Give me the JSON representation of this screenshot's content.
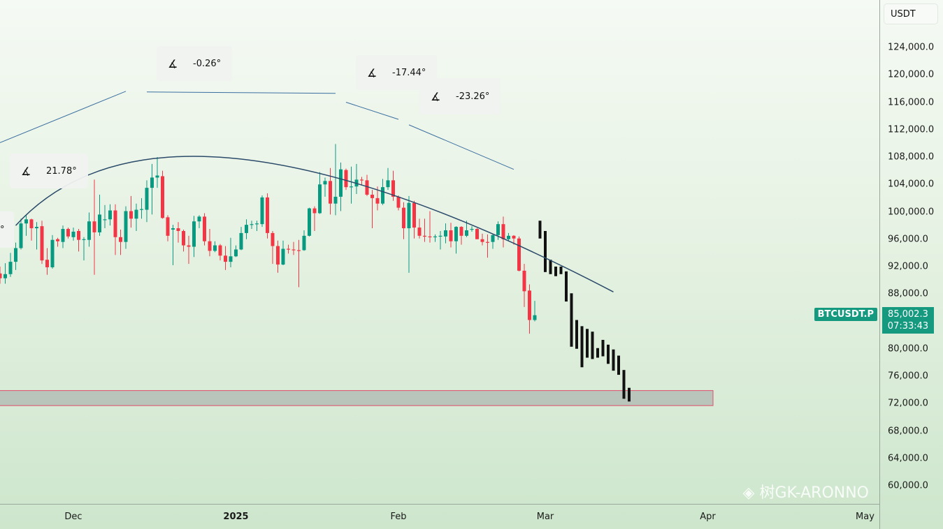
{
  "chart_data": {
    "type": "candlestick",
    "symbol": "BTCUSDT.P",
    "currency": "USDT",
    "last_price": "85,002.3",
    "countdown": "07:33:43",
    "y_ticks": [
      "124,000.0",
      "120,000.0",
      "116,000.0",
      "112,000.0",
      "108,000.0",
      "104,000.0",
      "100,000.0",
      "96,000.0",
      "92,000.0",
      "88,000.0",
      "84,000.0",
      "80,000.0",
      "76,000.0",
      "72,000.0",
      "68,000.0",
      "64,000.0",
      "60,000.0"
    ],
    "x_ticks": [
      {
        "label": "Dec",
        "date": "2024-12-01"
      },
      {
        "label": "2025",
        "date": "2025-01-01",
        "bold": true
      },
      {
        "label": "Feb",
        "date": "2025-02-01"
      },
      {
        "label": "Mar",
        "date": "2025-03-01"
      },
      {
        "label": "Apr",
        "date": "2025-04-01"
      },
      {
        "label": "May",
        "date": "2025-05-01"
      }
    ],
    "ylim": [
      58000,
      130000
    ],
    "colors": {
      "up": "#089981",
      "down": "#f23645",
      "projection": "#111111",
      "curve": "#2a4a6a",
      "zone_fill": "#b9c4bb",
      "zone_border": "#e0506a"
    },
    "candles_columns": [
      "date",
      "open",
      "high",
      "low",
      "close"
    ],
    "candles": [
      [
        "2024-11-17",
        91000,
        92000,
        89500,
        90300
      ],
      [
        "2024-11-18",
        90300,
        92500,
        89500,
        90900
      ],
      [
        "2024-11-19",
        90900,
        94000,
        90500,
        92700
      ],
      [
        "2024-11-20",
        92700,
        95500,
        91500,
        94700
      ],
      [
        "2024-11-21",
        94700,
        99000,
        94500,
        98300
      ],
      [
        "2024-11-22",
        98300,
        99500,
        96500,
        98900
      ],
      [
        "2024-11-23",
        98900,
        99000,
        95800,
        97600
      ],
      [
        "2024-11-24",
        97600,
        98500,
        94500,
        97800
      ],
      [
        "2024-11-25",
        97900,
        98700,
        92400,
        92900
      ],
      [
        "2024-11-26",
        93000,
        94700,
        90800,
        91900
      ],
      [
        "2024-11-27",
        91900,
        96600,
        91700,
        95900
      ],
      [
        "2024-11-28",
        96000,
        96200,
        94900,
        95700
      ],
      [
        "2024-11-29",
        95600,
        98000,
        94700,
        97500
      ],
      [
        "2024-11-30",
        97500,
        97700,
        96100,
        96400
      ],
      [
        "2024-12-01",
        96300,
        97700,
        95800,
        97100
      ],
      [
        "2024-12-02",
        97200,
        97500,
        94200,
        95900
      ],
      [
        "2024-12-03",
        95900,
        96300,
        92900,
        96000
      ],
      [
        "2024-12-04",
        95900,
        99900,
        94900,
        98600
      ],
      [
        "2024-12-05",
        98600,
        104700,
        90800,
        97000
      ],
      [
        "2024-12-06",
        97000,
        102500,
        96500,
        99600
      ],
      [
        "2024-12-07",
        98800,
        101000,
        97600,
        98900
      ],
      [
        "2024-12-08",
        98900,
        101100,
        98000,
        100200
      ],
      [
        "2024-12-09",
        100200,
        101100,
        93700,
        96300
      ],
      [
        "2024-12-10",
        96300,
        97400,
        93700,
        95600
      ],
      [
        "2024-12-11",
        95600,
        100800,
        94600,
        100100
      ],
      [
        "2024-12-12",
        100100,
        102300,
        97700,
        99000
      ],
      [
        "2024-12-13",
        99000,
        101200,
        97200,
        100300
      ],
      [
        "2024-12-14",
        100300,
        102000,
        99000,
        100400
      ],
      [
        "2024-12-15",
        100300,
        104600,
        98500,
        103500
      ],
      [
        "2024-12-16",
        103500,
        107000,
        99600,
        105000
      ],
      [
        "2024-12-17",
        105000,
        108000,
        103500,
        105300
      ],
      [
        "2024-12-18",
        105200,
        106000,
        99000,
        99100
      ],
      [
        "2024-12-19",
        99200,
        99500,
        95700,
        96500
      ],
      [
        "2024-12-20",
        97400,
        98100,
        92200,
        97600
      ],
      [
        "2024-12-21",
        97600,
        98500,
        95500,
        97200
      ],
      [
        "2024-12-22",
        97200,
        97400,
        94200,
        95100
      ],
      [
        "2024-12-23",
        95100,
        96500,
        92400,
        94900
      ],
      [
        "2024-12-24",
        94900,
        99400,
        93400,
        98600
      ],
      [
        "2024-12-25",
        98600,
        99500,
        97600,
        99300
      ],
      [
        "2024-12-26",
        99300,
        99800,
        95100,
        95700
      ],
      [
        "2024-12-27",
        95700,
        97500,
        93500,
        94300
      ],
      [
        "2024-12-28",
        94300,
        95700,
        94100,
        95100
      ],
      [
        "2024-12-29",
        95100,
        95300,
        92900,
        93600
      ],
      [
        "2024-12-30",
        93600,
        95000,
        91500,
        92700
      ],
      [
        "2024-12-31",
        92700,
        96200,
        91900,
        93500
      ],
      [
        "2025-01-01",
        93500,
        95100,
        93400,
        94500
      ],
      [
        "2025-01-02",
        94500,
        97800,
        94400,
        96900
      ],
      [
        "2025-01-03",
        96900,
        98900,
        96000,
        98100
      ],
      [
        "2025-01-04",
        98100,
        98700,
        97500,
        98200
      ],
      [
        "2025-01-05",
        98200,
        98700,
        97200,
        98300
      ],
      [
        "2025-01-06",
        98200,
        102400,
        97800,
        102100
      ],
      [
        "2025-01-07",
        102100,
        102700,
        96100,
        96900
      ],
      [
        "2025-01-08",
        96900,
        97200,
        92400,
        95000
      ],
      [
        "2025-01-09",
        95000,
        95800,
        91100,
        92300
      ],
      [
        "2025-01-10",
        92300,
        95800,
        92200,
        94600
      ],
      [
        "2025-01-11",
        94600,
        95200,
        93900,
        94500
      ],
      [
        "2025-01-12",
        94500,
        95600,
        93700,
        94400
      ],
      [
        "2025-01-13",
        94400,
        95900,
        89000,
        94300
      ],
      [
        "2025-01-14",
        94400,
        97300,
        94300,
        96500
      ],
      [
        "2025-01-15",
        96500,
        100600,
        96400,
        100500
      ],
      [
        "2025-01-16",
        100500,
        100800,
        97200,
        99800
      ],
      [
        "2025-01-17",
        99800,
        105800,
        99700,
        104000
      ],
      [
        "2025-01-18",
        104000,
        105000,
        102200,
        104500
      ],
      [
        "2025-01-19",
        104500,
        106400,
        99600,
        101200
      ],
      [
        "2025-01-20",
        101200,
        109900,
        99500,
        102200
      ],
      [
        "2025-01-21",
        102200,
        107200,
        100100,
        106200
      ],
      [
        "2025-01-22",
        106100,
        106300,
        103200,
        103600
      ],
      [
        "2025-01-23",
        103600,
        106600,
        101200,
        103700
      ],
      [
        "2025-01-24",
        103700,
        107000,
        102600,
        104700
      ],
      [
        "2025-01-25",
        104700,
        105100,
        103900,
        104600
      ],
      [
        "2025-01-26",
        104600,
        105400,
        102300,
        102500
      ],
      [
        "2025-01-27",
        102500,
        103200,
        97600,
        102000
      ],
      [
        "2025-01-28",
        102000,
        103700,
        100200,
        101200
      ],
      [
        "2025-01-29",
        101200,
        104800,
        101000,
        103600
      ],
      [
        "2025-01-30",
        103600,
        106400,
        103200,
        104600
      ],
      [
        "2025-01-31",
        104600,
        106000,
        101600,
        102200
      ],
      [
        "2025-02-01",
        102200,
        102400,
        100200,
        100600
      ],
      [
        "2025-02-02",
        100600,
        101400,
        96000,
        97600
      ],
      [
        "2025-02-03",
        97600,
        102300,
        91100,
        101300
      ],
      [
        "2025-02-04",
        101300,
        101600,
        96100,
        97700
      ],
      [
        "2025-02-05",
        97700,
        99000,
        96100,
        96500
      ],
      [
        "2025-02-06",
        96500,
        99000,
        95600,
        96400
      ],
      [
        "2025-02-07",
        96400,
        100100,
        95500,
        96300
      ],
      [
        "2025-02-08",
        96300,
        96700,
        95600,
        96400
      ],
      [
        "2025-02-09",
        96400,
        97200,
        94500,
        96500
      ],
      [
        "2025-02-10",
        96400,
        98300,
        95400,
        97300
      ],
      [
        "2025-02-11",
        97300,
        98400,
        94800,
        95700
      ],
      [
        "2025-02-12",
        95700,
        97900,
        93900,
        97800
      ],
      [
        "2025-02-13",
        97800,
        97900,
        95200,
        96500
      ],
      [
        "2025-02-14",
        96500,
        98700,
        96300,
        97300
      ],
      [
        "2025-02-15",
        97400,
        97900,
        97100,
        97500
      ],
      [
        "2025-02-16",
        97500,
        97600,
        96000,
        96000
      ],
      [
        "2025-02-17",
        96000,
        96800,
        95100,
        95600
      ],
      [
        "2025-02-18",
        95600,
        96700,
        93300,
        95500
      ],
      [
        "2025-02-19",
        95600,
        96800,
        94600,
        96600
      ],
      [
        "2025-02-20",
        96600,
        98600,
        95900,
        98200
      ],
      [
        "2025-02-21",
        98200,
        99300,
        94800,
        96000
      ],
      [
        "2025-02-22",
        96000,
        96900,
        95700,
        96500
      ],
      [
        "2025-02-23",
        96500,
        96600,
        95200,
        96100
      ],
      [
        "2025-02-24",
        96100,
        96400,
        91300,
        91400
      ],
      [
        "2025-02-25",
        91400,
        92400,
        86100,
        88400
      ],
      [
        "2025-02-26",
        88500,
        89400,
        82200,
        84200
      ],
      [
        "2025-02-27",
        84200,
        87000,
        84000,
        84900
      ]
    ],
    "projection_columns": [
      "date",
      "high",
      "low"
    ],
    "projection": [
      [
        "2025-02-28",
        98700,
        96100
      ],
      [
        "2025-03-01",
        97200,
        91200
      ],
      [
        "2025-03-02",
        93000,
        90900
      ],
      [
        "2025-03-03",
        92000,
        90600
      ],
      [
        "2025-03-04",
        92000,
        90900
      ],
      [
        "2025-03-05",
        91300,
        86900
      ],
      [
        "2025-03-06",
        88100,
        80300
      ],
      [
        "2025-03-07",
        84200,
        80000
      ],
      [
        "2025-03-08",
        83300,
        77300
      ],
      [
        "2025-03-09",
        82900,
        78700
      ],
      [
        "2025-03-10",
        82500,
        78500
      ],
      [
        "2025-03-11",
        80100,
        78700
      ],
      [
        "2025-03-12",
        81300,
        78900
      ],
      [
        "2025-03-13",
        80600,
        77800
      ],
      [
        "2025-03-14",
        79900,
        76800
      ],
      [
        "2025-03-15",
        79000,
        76200
      ],
      [
        "2025-03-16",
        76900,
        72700
      ],
      [
        "2025-03-17",
        74300,
        72300
      ]
    ],
    "zone": {
      "from": "2024-11-01",
      "to": "2025-04-02",
      "top": 73900,
      "bottom": 71700
    },
    "arc": [
      [
        "2024-11-20",
        98000
      ],
      [
        "2025-01-02",
        107700
      ],
      [
        "2025-03-14",
        88300
      ]
    ],
    "trend_lines": [
      {
        "from": [
          "2024-11-17",
          110100
        ],
        "to": [
          "2024-12-11",
          117600
        ],
        "angle": "21.78°"
      },
      {
        "from": [
          "2024-12-15",
          117500
        ],
        "to": [
          "2025-01-20",
          117300
        ],
        "angle": "-0.26°"
      },
      {
        "from": [
          "2025-01-22",
          116000
        ],
        "to": [
          "2025-02-01",
          113500
        ],
        "angle": "-17.44°"
      },
      {
        "from": [
          "2025-02-03",
          112700
        ],
        "to": [
          "2025-02-23",
          106200
        ],
        "angle": "-23.26°"
      }
    ],
    "partial_angle_label": "°"
  },
  "watermark": "GK-ARONNO",
  "watermark_prefix": "树"
}
